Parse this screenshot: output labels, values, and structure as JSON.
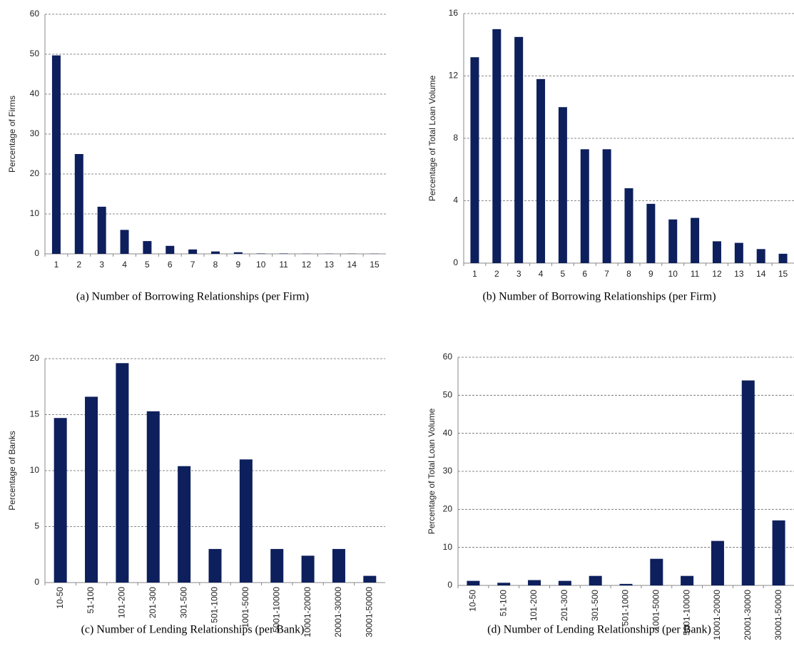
{
  "chart_data": [
    {
      "type": "bar",
      "ylabel": "Percentage of Firms",
      "caption": "(a) Number of Borrowing Relationships (per Firm)",
      "categories": [
        "1",
        "2",
        "3",
        "4",
        "5",
        "6",
        "7",
        "8",
        "9",
        "10",
        "11",
        "12",
        "13",
        "14",
        "15"
      ],
      "values": [
        49.7,
        25,
        11.8,
        6,
        3.2,
        2,
        1.1,
        0.6,
        0.4,
        0.1,
        0.1,
        0.05,
        0.05,
        0.05,
        0.05
      ],
      "color": "#0d1f5c",
      "ylim": [
        0,
        60
      ],
      "yticks": [
        0,
        10,
        20,
        30,
        40,
        50,
        60
      ],
      "grid": true,
      "rotate_labels": false
    },
    {
      "type": "bar",
      "ylabel": "Percentage of Total Loan Volume",
      "caption": "(b) Number of Borrowing Relationships (per Firm)",
      "categories": [
        "1",
        "2",
        "3",
        "4",
        "5",
        "6",
        "7",
        "8",
        "9",
        "10",
        "11",
        "12",
        "13",
        "14",
        "15"
      ],
      "values": [
        13.2,
        15.0,
        14.5,
        11.8,
        10.0,
        7.3,
        7.3,
        4.8,
        3.8,
        2.8,
        2.9,
        1.4,
        1.3,
        0.9,
        0.6
      ],
      "color": "#0d1f5c",
      "ylim": [
        0,
        16
      ],
      "yticks": [
        0,
        4,
        8,
        12,
        16
      ],
      "grid": true,
      "rotate_labels": false
    },
    {
      "type": "bar",
      "ylabel": "Percentage of Banks",
      "caption": "(c) Number of Lending Relationships (per Bank)",
      "categories": [
        "10-50",
        "51-100",
        "101-200",
        "201-300",
        "301-500",
        "501-1000",
        "1001-5000",
        "5001-10000",
        "10001-20000",
        "20001-30000",
        "30001-50000"
      ],
      "values": [
        14.7,
        16.6,
        19.6,
        15.3,
        10.4,
        3.0,
        11.0,
        3.0,
        2.4,
        3.0,
        0.6
      ],
      "color": "#0d1f5c",
      "ylim": [
        0,
        20
      ],
      "yticks": [
        0,
        5,
        10,
        15,
        20
      ],
      "grid": true,
      "rotate_labels": true
    },
    {
      "type": "bar",
      "ylabel": "Percentage of Total Loan Volume",
      "caption": "(d) Number of Lending Relationships (per Bank)",
      "categories": [
        "10-50",
        "51-100",
        "101-200",
        "201-300",
        "301-500",
        "501-1000",
        "1001-5000",
        "5001-10000",
        "10001-20000",
        "20001-30000",
        "30001-50000"
      ],
      "values": [
        1.2,
        0.7,
        1.4,
        1.2,
        2.5,
        0.4,
        7.0,
        2.5,
        11.7,
        53.9,
        17.1
      ],
      "color": "#0d1f5c",
      "ylim": [
        0,
        60
      ],
      "yticks": [
        0,
        10,
        20,
        30,
        40,
        50,
        60
      ],
      "grid": true,
      "rotate_labels": true
    }
  ]
}
